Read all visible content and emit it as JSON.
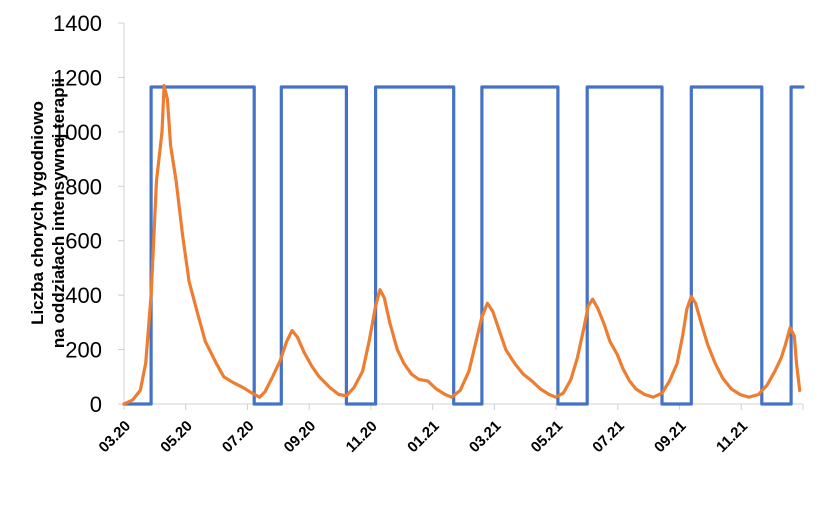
{
  "chart_data": {
    "type": "line",
    "ylabel_lines": [
      "Liczba chorych tygodniowo",
      "na oddziałach intensywnej terapii"
    ],
    "ylim": [
      0,
      1400
    ],
    "y_ticks": [
      0,
      200,
      400,
      600,
      800,
      1000,
      1200,
      1400
    ],
    "y_tick_labels": [
      "0",
      "200",
      "400",
      "600",
      "800",
      "1000",
      "1200",
      "1400"
    ],
    "x_tick_labels": [
      "03.20",
      "05.20",
      "07.20",
      "09.20",
      "11.20",
      "01.21",
      "03.21",
      "05.21",
      "07.21",
      "09.21",
      "11.21"
    ],
    "series": [
      {
        "color": "#4472C4",
        "points": [
          [
            0,
            0
          ],
          [
            25,
            0
          ],
          [
            25,
            1165
          ],
          [
            120,
            1165
          ],
          [
            120,
            0
          ],
          [
            145,
            0
          ],
          [
            145,
            1165
          ],
          [
            205,
            1165
          ],
          [
            205,
            0
          ],
          [
            232,
            0
          ],
          [
            232,
            1165
          ],
          [
            304,
            1165
          ],
          [
            304,
            0
          ],
          [
            330,
            0
          ],
          [
            330,
            1165
          ],
          [
            400,
            1165
          ],
          [
            400,
            0
          ],
          [
            427,
            0
          ],
          [
            427,
            1165
          ],
          [
            496,
            1165
          ],
          [
            496,
            0
          ],
          [
            523,
            0
          ],
          [
            523,
            1165
          ],
          [
            588,
            1165
          ],
          [
            588,
            0
          ],
          [
            615,
            0
          ],
          [
            615,
            1165
          ],
          [
            626,
            1165
          ]
        ]
      },
      {
        "color": "#ED7D31",
        "points": [
          [
            0,
            0
          ],
          [
            8,
            15
          ],
          [
            15,
            50
          ],
          [
            20,
            150
          ],
          [
            25,
            400
          ],
          [
            30,
            820
          ],
          [
            35,
            1000
          ],
          [
            37,
            1170
          ],
          [
            40,
            1120
          ],
          [
            43,
            950
          ],
          [
            48,
            820
          ],
          [
            54,
            620
          ],
          [
            60,
            450
          ],
          [
            68,
            330
          ],
          [
            75,
            230
          ],
          [
            85,
            150
          ],
          [
            92,
            100
          ],
          [
            100,
            80
          ],
          [
            110,
            60
          ],
          [
            118,
            40
          ],
          [
            125,
            25
          ],
          [
            130,
            45
          ],
          [
            137,
            100
          ],
          [
            144,
            160
          ],
          [
            150,
            230
          ],
          [
            155,
            270
          ],
          [
            160,
            245
          ],
          [
            166,
            190
          ],
          [
            173,
            140
          ],
          [
            180,
            100
          ],
          [
            190,
            60
          ],
          [
            198,
            35
          ],
          [
            205,
            30
          ],
          [
            212,
            60
          ],
          [
            220,
            120
          ],
          [
            226,
            230
          ],
          [
            232,
            360
          ],
          [
            236,
            420
          ],
          [
            240,
            390
          ],
          [
            245,
            300
          ],
          [
            252,
            200
          ],
          [
            258,
            150
          ],
          [
            265,
            110
          ],
          [
            272,
            90
          ],
          [
            280,
            85
          ],
          [
            288,
            55
          ],
          [
            296,
            35
          ],
          [
            302,
            25
          ],
          [
            310,
            50
          ],
          [
            318,
            120
          ],
          [
            324,
            220
          ],
          [
            330,
            320
          ],
          [
            335,
            370
          ],
          [
            340,
            340
          ],
          [
            346,
            270
          ],
          [
            352,
            200
          ],
          [
            360,
            150
          ],
          [
            368,
            110
          ],
          [
            376,
            85
          ],
          [
            384,
            55
          ],
          [
            392,
            35
          ],
          [
            398,
            25
          ],
          [
            405,
            40
          ],
          [
            412,
            90
          ],
          [
            418,
            170
          ],
          [
            424,
            280
          ],
          [
            428,
            360
          ],
          [
            432,
            385
          ],
          [
            437,
            350
          ],
          [
            443,
            290
          ],
          [
            448,
            230
          ],
          [
            455,
            180
          ],
          [
            460,
            130
          ],
          [
            466,
            85
          ],
          [
            472,
            55
          ],
          [
            480,
            35
          ],
          [
            488,
            25
          ],
          [
            496,
            40
          ],
          [
            503,
            85
          ],
          [
            510,
            150
          ],
          [
            515,
            250
          ],
          [
            519,
            350
          ],
          [
            523,
            395
          ],
          [
            527,
            370
          ],
          [
            532,
            300
          ],
          [
            538,
            220
          ],
          [
            545,
            150
          ],
          [
            552,
            95
          ],
          [
            560,
            55
          ],
          [
            568,
            35
          ],
          [
            576,
            25
          ],
          [
            585,
            35
          ],
          [
            593,
            70
          ],
          [
            600,
            120
          ],
          [
            606,
            170
          ],
          [
            610,
            220
          ],
          [
            614,
            280
          ],
          [
            618,
            250
          ],
          [
            620,
            150
          ],
          [
            623,
            50
          ]
        ]
      }
    ]
  }
}
